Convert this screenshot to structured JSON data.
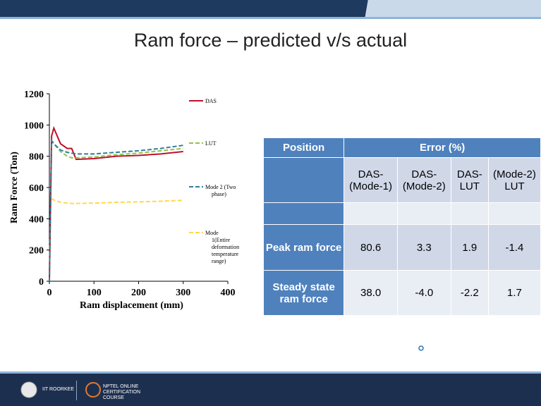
{
  "header": {
    "title": "Ram force – predicted v/s actual"
  },
  "chart_data": {
    "type": "line",
    "ylabel": "Ram Force (Ton)",
    "xlabel": "Ram displacement (mm)",
    "x": [
      0,
      5,
      10,
      25,
      40,
      50,
      60,
      100,
      150,
      200,
      250,
      300
    ],
    "series": [
      {
        "name": "DAS",
        "color": "#c0102a",
        "style": "solid",
        "values": [
          0,
          930,
          980,
          880,
          850,
          850,
          780,
          785,
          800,
          805,
          815,
          830
        ]
      },
      {
        "name": "LUT",
        "color": "#92c24a",
        "style": "dashed",
        "values": [
          0,
          900,
          880,
          830,
          800,
          790,
          790,
          795,
          810,
          820,
          835,
          850
        ]
      },
      {
        "name": "Mode 2 (Two phase)",
        "color": "#2f7f99",
        "style": "dashed",
        "values": [
          0,
          900,
          880,
          840,
          825,
          820,
          815,
          815,
          825,
          835,
          850,
          870
        ]
      },
      {
        "name": "Mode 1(Entire deformation temperature range)",
        "color": "#ffd84d",
        "style": "dashed",
        "values": [
          null,
          530,
          520,
          505,
          500,
          498,
          498,
          500,
          505,
          508,
          512,
          518
        ]
      }
    ],
    "xlim": [
      0,
      400
    ],
    "xticks": [
      0,
      100,
      200,
      300,
      400
    ],
    "ylim": [
      0,
      1200
    ],
    "yticks": [
      0,
      200,
      400,
      600,
      800,
      1000,
      1200
    ],
    "grid": false
  },
  "table": {
    "rows": [
      [
        "Position",
        "Error (%)"
      ],
      [
        "",
        "DAS-(Mode-1)",
        "DAS-(Mode-2)",
        "DAS-LUT",
        "(Mode-2) LUT"
      ],
      [
        "",
        "",
        "",
        "",
        ""
      ],
      [
        "Peak ram force",
        "80.6",
        "3.3",
        "1.9",
        "-1.4"
      ],
      [
        "Steady state ram force",
        "38.0",
        "-4.0",
        "-2.2",
        "1.7"
      ]
    ]
  },
  "footer": {
    "left": "IIT ROORKEE",
    "right": "NPTEL ONLINE CERTIFICATION COURSE"
  }
}
